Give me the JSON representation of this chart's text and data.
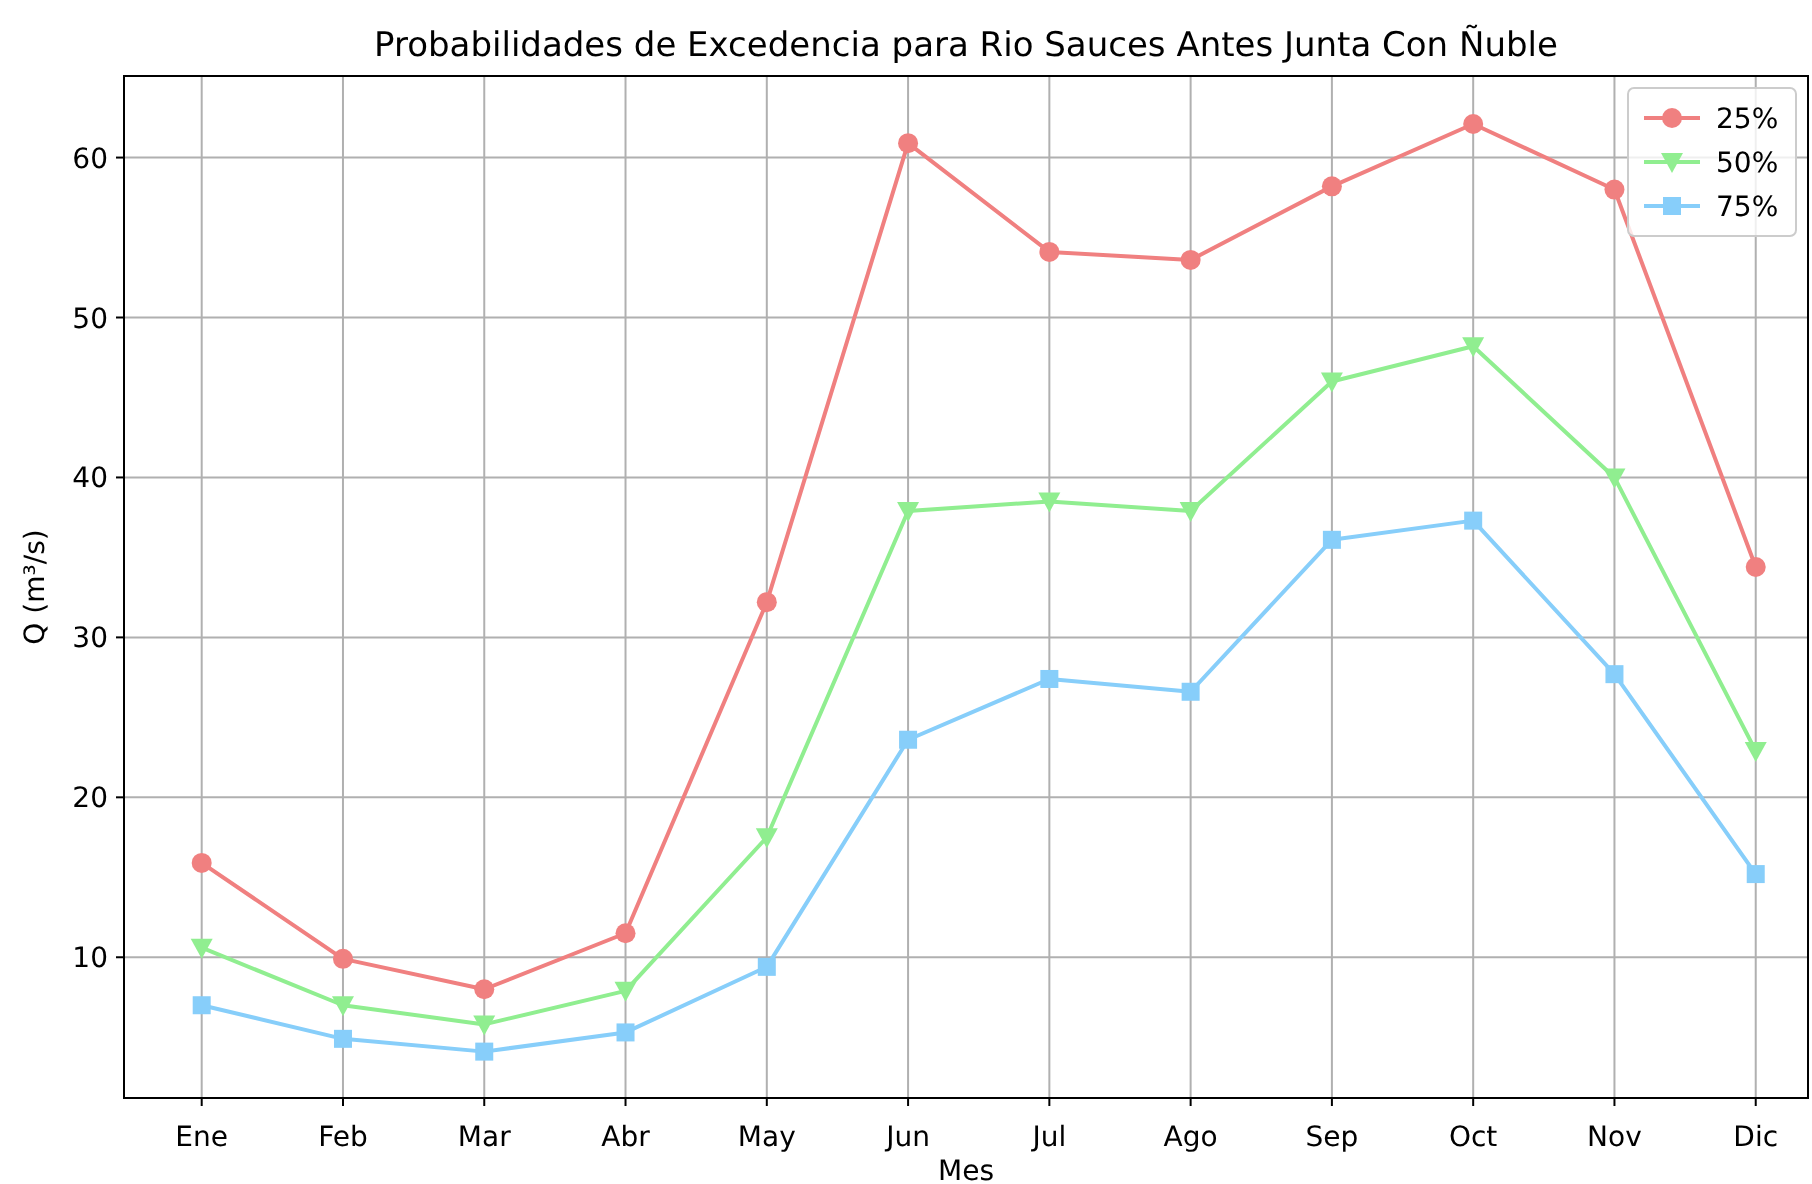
{
  "chart_data": {
    "type": "line",
    "title": "Probabilidades de Excedencia para Rio Sauces Antes Junta Con Ñuble",
    "xlabel": "Mes",
    "ylabel": "Q (m³/s)",
    "categories": [
      "Ene",
      "Feb",
      "Mar",
      "Abr",
      "May",
      "Jun",
      "Jul",
      "Ago",
      "Sep",
      "Oct",
      "Nov",
      "Dic"
    ],
    "series": [
      {
        "name": "25%",
        "color": "#f08080",
        "marker": "circle",
        "values": [
          15.9,
          9.9,
          8.0,
          11.5,
          32.2,
          60.9,
          54.1,
          53.6,
          58.2,
          62.1,
          58.0,
          34.4
        ]
      },
      {
        "name": "50%",
        "color": "#90ee90",
        "marker": "triangle",
        "values": [
          10.6,
          7.0,
          5.8,
          7.9,
          17.5,
          37.9,
          38.5,
          37.9,
          46.0,
          48.2,
          40.0,
          22.9
        ]
      },
      {
        "name": "75%",
        "color": "#87cefa",
        "marker": "square",
        "values": [
          7.0,
          4.9,
          4.1,
          5.3,
          9.4,
          23.6,
          27.4,
          26.6,
          36.1,
          37.3,
          27.7,
          15.2
        ]
      }
    ],
    "ylim": [
      1.2,
      65.1
    ],
    "yticks": [
      10,
      20,
      30,
      40,
      50,
      60
    ],
    "grid": true,
    "legend": "top right",
    "line_style": "solid"
  }
}
